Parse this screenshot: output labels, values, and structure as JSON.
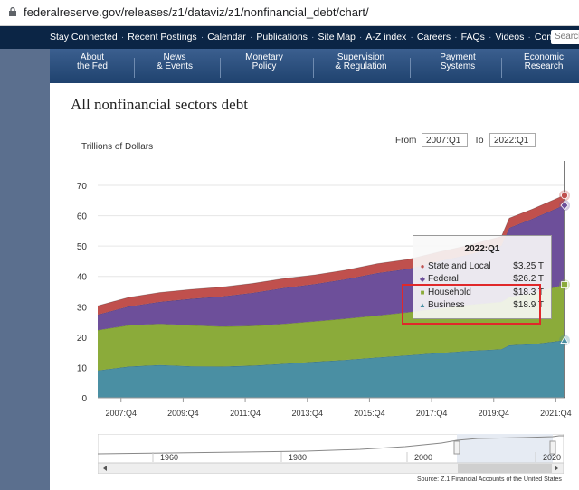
{
  "browser": {
    "url": "federalreserve.gov/releases/z1/dataviz/z1/nonfinancial_debt/chart/"
  },
  "top_nav": {
    "items": [
      "Stay Connected",
      "Recent Postings",
      "Calendar",
      "Publications",
      "Site Map",
      "A-Z index",
      "Careers",
      "FAQs",
      "Videos",
      "Contact"
    ],
    "search_placeholder": "Search"
  },
  "main_nav": {
    "items": [
      {
        "line1": "About",
        "line2": "the Fed"
      },
      {
        "line1": "News",
        "line2": "& Events"
      },
      {
        "line1": "Monetary",
        "line2": "Policy"
      },
      {
        "line1": "Supervision",
        "line2": "& Regulation"
      },
      {
        "line1": "Payment",
        "line2": "Systems"
      },
      {
        "line1": "Economic",
        "line2": "Research"
      }
    ]
  },
  "page": {
    "title": "All nonfinancial sectors debt",
    "from_label": "From",
    "from_value": "2007:Q1",
    "to_label": "To",
    "to_value": "2022:Q1",
    "source": "Source: Z.1 Financial Accounts of the United States"
  },
  "tooltip": {
    "header": "2022:Q1",
    "rows": [
      {
        "label": "State and Local",
        "value": "$3.25 T",
        "color": "#c0504d",
        "marker": "●"
      },
      {
        "label": "Federal",
        "value": "$26.2 T",
        "color": "#6d4f9a",
        "marker": "◆"
      },
      {
        "label": "Household",
        "value": "$18.3 T",
        "color": "#8bab3a",
        "marker": "■"
      },
      {
        "label": "Business",
        "value": "$18.9 T",
        "color": "#4a8fa3",
        "marker": "▲"
      }
    ]
  },
  "navigator": {
    "labels": [
      "1960",
      "1980",
      "2000",
      "2020"
    ]
  },
  "chart_data": {
    "type": "area",
    "stacked": true,
    "ylabel": "Trillions of Dollars",
    "ylim": [
      0,
      70
    ],
    "yticks": [
      0,
      10,
      20,
      30,
      40,
      50,
      60,
      70
    ],
    "xtick_labels": [
      "2007:Q4",
      "2009:Q4",
      "2011:Q4",
      "2013:Q4",
      "2015:Q4",
      "2017:Q4",
      "2019:Q4",
      "2021:Q4"
    ],
    "x": [
      2007.0,
      2008.0,
      2009.0,
      2010.0,
      2011.0,
      2012.0,
      2013.0,
      2014.0,
      2015.0,
      2016.0,
      2017.0,
      2018.0,
      2019.0,
      2020.0,
      2020.25,
      2021.0,
      2022.0
    ],
    "series": [
      {
        "name": "Business",
        "color": "#4a8fa3",
        "values": [
          9.0,
          10.3,
          10.8,
          10.4,
          10.3,
          10.6,
          11.2,
          11.9,
          12.5,
          13.3,
          14.0,
          14.8,
          15.5,
          16.0,
          17.3,
          17.7,
          18.9
        ]
      },
      {
        "name": "Household",
        "color": "#8bab3a",
        "values": [
          13.3,
          13.6,
          13.6,
          13.5,
          13.2,
          13.1,
          13.2,
          13.3,
          13.6,
          13.8,
          14.2,
          14.7,
          15.2,
          15.6,
          15.9,
          16.8,
          18.3
        ]
      },
      {
        "name": "Federal",
        "color": "#6d4f9a",
        "values": [
          5.1,
          6.2,
          7.2,
          8.7,
          9.9,
          10.9,
          11.8,
          12.3,
          13.0,
          14.0,
          14.3,
          15.5,
          16.6,
          18.5,
          22.8,
          24.5,
          26.2
        ]
      },
      {
        "name": "State and Local",
        "color": "#c0504d",
        "values": [
          2.9,
          3.0,
          3.1,
          3.1,
          3.1,
          3.1,
          3.1,
          3.0,
          3.0,
          3.1,
          3.1,
          3.1,
          3.1,
          3.1,
          3.2,
          3.2,
          3.25
        ]
      }
    ]
  }
}
